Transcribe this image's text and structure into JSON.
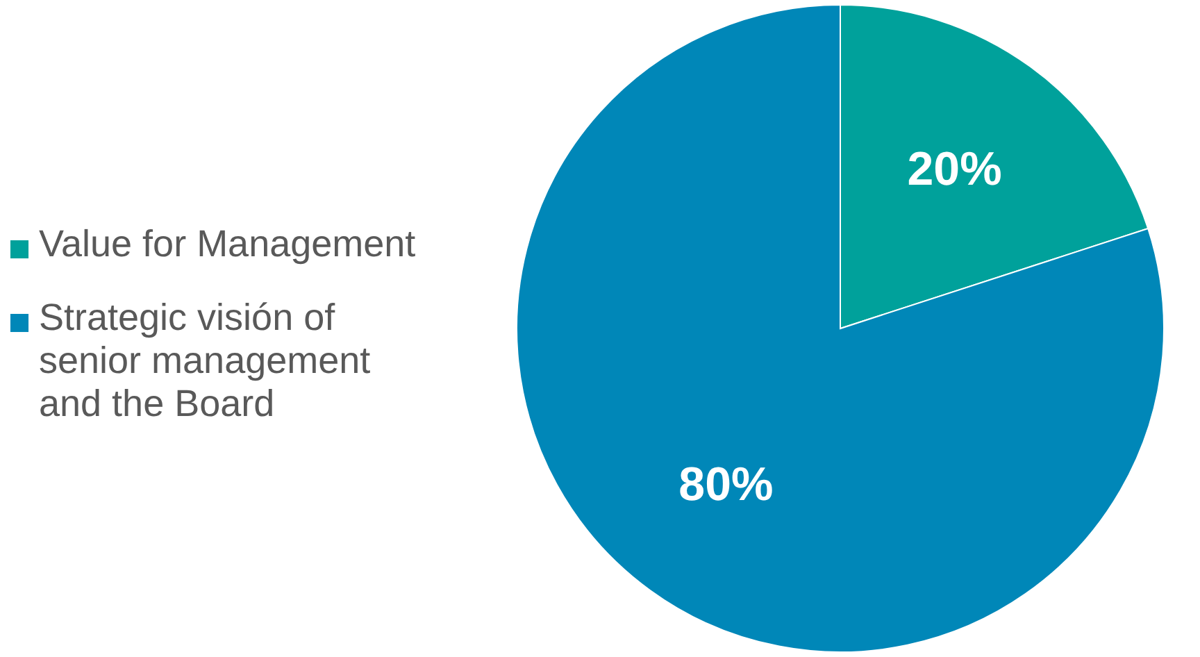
{
  "chart_data": {
    "type": "pie",
    "categories": [
      "Value for Management",
      "Strategic visión of senior management and the Board"
    ],
    "values": [
      20,
      80
    ],
    "colors": [
      "#00a19b",
      "#0087b8"
    ],
    "value_labels": [
      "20%",
      "80%"
    ],
    "legend": "left"
  }
}
